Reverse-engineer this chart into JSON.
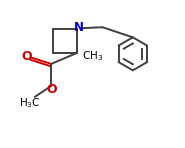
{
  "bg_color": "#ffffff",
  "bond_color": "#404040",
  "N_color": "#0000cc",
  "O_color": "#cc0000",
  "text_color": "#000000",
  "figsize": [
    1.85,
    1.48
  ],
  "dpi": 100,
  "xlim": [
    0,
    10
  ],
  "ylim": [
    0,
    8
  ]
}
